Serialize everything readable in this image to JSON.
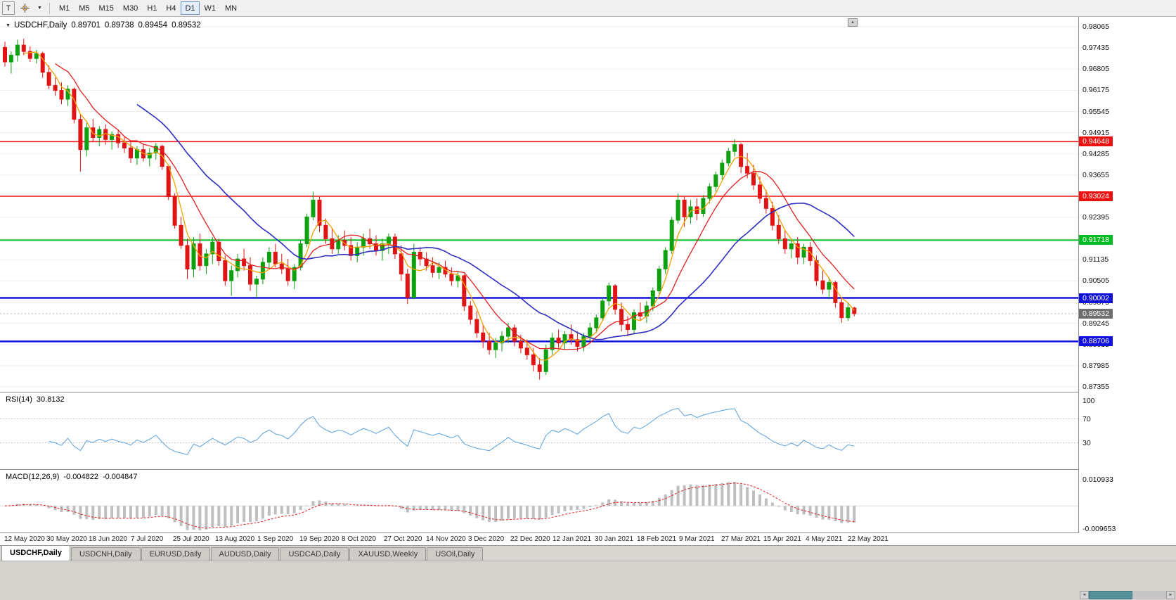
{
  "toolbar": {
    "t_button": "T",
    "timeframes": [
      "M1",
      "M5",
      "M15",
      "M30",
      "H1",
      "H4",
      "D1",
      "W1",
      "MN"
    ],
    "active_timeframe": "D1"
  },
  "icons": {
    "one_click_arrow": "▼",
    "tool_dropdown": "▼",
    "shift_marker": "▲",
    "scroll_left": "◄",
    "scroll_right": "►"
  },
  "chart_header": {
    "symbol": "USDCHF,Daily",
    "open": "0.89701",
    "high": "0.89738",
    "low": "0.89454",
    "close": "0.89532"
  },
  "price_axis": {
    "max": 0.98065,
    "min": 0.87355,
    "labels": [
      "0.98065",
      "0.97435",
      "0.96805",
      "0.96175",
      "0.95545",
      "0.94915",
      "0.94285",
      "0.93655",
      "0.93025",
      "0.92395",
      "0.91765",
      "0.91135",
      "0.90505",
      "0.89875",
      "0.89245",
      "0.88615",
      "0.87985",
      "0.87355"
    ]
  },
  "levels": [
    {
      "value": "0.94648",
      "color": "#ee1111",
      "thickness": 1.5
    },
    {
      "value": "0.93024",
      "color": "#ee1111",
      "thickness": 1.5
    },
    {
      "value": "0.91718",
      "color": "#00bb22",
      "thickness": 2
    },
    {
      "value": "0.90002",
      "color": "#1111dd",
      "thickness": 2.5
    },
    {
      "value": "0.88706",
      "color": "#1111dd",
      "thickness": 2.5
    }
  ],
  "current_price": {
    "value": "0.89532",
    "badge_color": "#6e6e6e"
  },
  "rsi_panel": {
    "label": "RSI(14)",
    "value": "30.8132",
    "axis_labels": [
      "100",
      "70",
      "30"
    ],
    "levels": [
      70,
      30
    ]
  },
  "macd_panel": {
    "label": "MACD(12,26,9)",
    "value_main": "-0.004822",
    "value_signal": "-0.004847",
    "axis_labels": [
      "0.010933",
      "-0.009653"
    ],
    "axis_max": 0.010933,
    "axis_min": -0.009653
  },
  "tabs": [
    {
      "label": "USDCHF,Daily",
      "active": true
    },
    {
      "label": "USDCNH,Daily",
      "active": false
    },
    {
      "label": "EURUSD,Daily",
      "active": false
    },
    {
      "label": "AUDUSD,Daily",
      "active": false
    },
    {
      "label": "USDCAD,Daily",
      "active": false
    },
    {
      "label": "XAUUSD,Weekly",
      "active": false
    },
    {
      "label": "USOil,Daily",
      "active": false
    }
  ],
  "colors": {
    "bull": "#0ea00e",
    "bear": "#e01414",
    "ma_fast": "#f2a000",
    "ma_mid": "#e02020",
    "ma_slow": "#2f2fbf",
    "rsi_line": "#5aa0dc",
    "macd_hist": "#bfbfbf",
    "macd_signal": "#e02020",
    "grid": "#ededed"
  },
  "chart_data": {
    "type": "candlestick",
    "symbol": "USDCHF",
    "timeframe": "Daily",
    "title": "USDCHF,Daily",
    "y_range": [
      0.87355,
      0.98065
    ],
    "last_ohlc": {
      "open": 0.89701,
      "high": 0.89738,
      "low": 0.89454,
      "close": 0.89532
    },
    "horizontal_lines": [
      0.94648,
      0.93024,
      0.91718,
      0.90002,
      0.88706
    ],
    "x_labels": [
      "12 May 2020",
      "30 May 2020",
      "18 Jun 2020",
      "7 Jul 2020",
      "25 Jul 2020",
      "13 Aug 2020",
      "1 Sep 2020",
      "19 Sep 2020",
      "8 Oct 2020",
      "27 Oct 2020",
      "14 Nov 2020",
      "3 Dec 2020",
      "22 Dec 2020",
      "12 Jan 2021",
      "30 Jan 2021",
      "18 Feb 2021",
      "9 Mar 2021",
      "27 Mar 2021",
      "15 Apr 2021",
      "4 May 2021",
      "22 May 2021"
    ],
    "overlays": [
      {
        "name": "ma-fast",
        "color": "#f2a000"
      },
      {
        "name": "ma-mid",
        "color": "#e02020"
      },
      {
        "name": "ma-slow",
        "color": "#2f2fbf"
      }
    ],
    "sub_charts": [
      {
        "type": "line",
        "name": "RSI(14)",
        "last_value": 30.8132,
        "range": [
          0,
          100
        ],
        "levels": [
          70,
          30
        ]
      },
      {
        "type": "histogram",
        "name": "MACD(12,26,9)",
        "last_values": [
          -0.004822,
          -0.004847
        ],
        "range": [
          -0.009653,
          0.010933
        ]
      }
    ],
    "candles": [
      [
        0.9745,
        0.9762,
        0.9688,
        0.9702
      ],
      [
        0.9702,
        0.9733,
        0.9667,
        0.9722
      ],
      [
        0.9722,
        0.9768,
        0.9703,
        0.9752
      ],
      [
        0.9752,
        0.9771,
        0.9722,
        0.9733
      ],
      [
        0.9733,
        0.9748,
        0.9702,
        0.9712
      ],
      [
        0.9712,
        0.9738,
        0.9697,
        0.9727
      ],
      [
        0.9727,
        0.9732,
        0.9655,
        0.9671
      ],
      [
        0.9671,
        0.9692,
        0.9621,
        0.9632
      ],
      [
        0.9632,
        0.9656,
        0.9601,
        0.9617
      ],
      [
        0.9617,
        0.9641,
        0.9576,
        0.9591
      ],
      [
        0.9591,
        0.9632,
        0.9571,
        0.9621
      ],
      [
        0.9621,
        0.9626,
        0.9519,
        0.9531
      ],
      [
        0.9531,
        0.9547,
        0.9376,
        0.9441
      ],
      [
        0.9441,
        0.9521,
        0.9421,
        0.9506
      ],
      [
        0.9506,
        0.9532,
        0.9466,
        0.9477
      ],
      [
        0.9477,
        0.9511,
        0.9451,
        0.9501
      ],
      [
        0.9501,
        0.9516,
        0.9456,
        0.9471
      ],
      [
        0.9471,
        0.9496,
        0.9441,
        0.9486
      ],
      [
        0.9486,
        0.9501,
        0.9446,
        0.9461
      ],
      [
        0.9461,
        0.9481,
        0.9431,
        0.9446
      ],
      [
        0.9446,
        0.9466,
        0.9401,
        0.9416
      ],
      [
        0.9416,
        0.9451,
        0.9396,
        0.9441
      ],
      [
        0.9441,
        0.9456,
        0.9406,
        0.9416
      ],
      [
        0.9416,
        0.9446,
        0.9391,
        0.9431
      ],
      [
        0.9431,
        0.9461,
        0.9411,
        0.9451
      ],
      [
        0.9451,
        0.9456,
        0.9381,
        0.9391
      ],
      [
        0.9391,
        0.9396,
        0.9291,
        0.9301
      ],
      [
        0.9301,
        0.9311,
        0.9206,
        0.9216
      ],
      [
        0.9216,
        0.9241,
        0.9146,
        0.9156
      ],
      [
        0.9156,
        0.9176,
        0.9056,
        0.9086
      ],
      [
        0.9086,
        0.9181,
        0.9061,
        0.9161
      ],
      [
        0.9161,
        0.9191,
        0.9081,
        0.9096
      ],
      [
        0.9096,
        0.9146,
        0.9071,
        0.9131
      ],
      [
        0.9131,
        0.9181,
        0.9101,
        0.9166
      ],
      [
        0.9166,
        0.9176,
        0.9096,
        0.9111
      ],
      [
        0.9111,
        0.9126,
        0.9036,
        0.9051
      ],
      [
        0.9051,
        0.9096,
        0.9006,
        0.9081
      ],
      [
        0.9081,
        0.9131,
        0.9061,
        0.9116
      ],
      [
        0.9116,
        0.9146,
        0.9081,
        0.9096
      ],
      [
        0.9096,
        0.9121,
        0.9021,
        0.9041
      ],
      [
        0.9041,
        0.9066,
        0.8998,
        0.9056
      ],
      [
        0.9056,
        0.9121,
        0.9041,
        0.9106
      ],
      [
        0.9106,
        0.9151,
        0.9086,
        0.9136
      ],
      [
        0.9136,
        0.9161,
        0.9091,
        0.9101
      ],
      [
        0.9101,
        0.9131,
        0.9071,
        0.9086
      ],
      [
        0.9086,
        0.9116,
        0.9036,
        0.9051
      ],
      [
        0.9051,
        0.9101,
        0.9026,
        0.9091
      ],
      [
        0.9091,
        0.9171,
        0.9081,
        0.9161
      ],
      [
        0.9161,
        0.9251,
        0.9151,
        0.9241
      ],
      [
        0.9241,
        0.9316,
        0.9231,
        0.9291
      ],
      [
        0.9291,
        0.9301,
        0.9196,
        0.9216
      ],
      [
        0.9216,
        0.9236,
        0.9161,
        0.9176
      ],
      [
        0.9176,
        0.9206,
        0.9131,
        0.9146
      ],
      [
        0.9146,
        0.9186,
        0.9131,
        0.9171
      ],
      [
        0.9171,
        0.9201,
        0.9141,
        0.9156
      ],
      [
        0.9156,
        0.9181,
        0.9111,
        0.9126
      ],
      [
        0.9126,
        0.9166,
        0.9106,
        0.9151
      ],
      [
        0.9151,
        0.9191,
        0.9126,
        0.9176
      ],
      [
        0.9176,
        0.9206,
        0.9146,
        0.9161
      ],
      [
        0.9161,
        0.9186,
        0.9126,
        0.9141
      ],
      [
        0.9141,
        0.9176,
        0.9111,
        0.9161
      ],
      [
        0.9161,
        0.9192,
        0.9131,
        0.9181
      ],
      [
        0.9181,
        0.9191,
        0.9116,
        0.9131
      ],
      [
        0.9131,
        0.9156,
        0.9051,
        0.9071
      ],
      [
        0.9071,
        0.9086,
        0.8982,
        0.9001
      ],
      [
        0.9001,
        0.9161,
        0.8996,
        0.9136
      ],
      [
        0.9136,
        0.9151,
        0.9096,
        0.9116
      ],
      [
        0.9116,
        0.9136,
        0.9081,
        0.9096
      ],
      [
        0.9096,
        0.9121,
        0.9061,
        0.9076
      ],
      [
        0.9076,
        0.9106,
        0.9056,
        0.9091
      ],
      [
        0.9091,
        0.9111,
        0.9061,
        0.9071
      ],
      [
        0.9071,
        0.9091,
        0.9036,
        0.9051
      ],
      [
        0.9051,
        0.9081,
        0.9031,
        0.9066
      ],
      [
        0.9066,
        0.9071,
        0.8961,
        0.8976
      ],
      [
        0.8976,
        0.8991,
        0.8921,
        0.8936
      ],
      [
        0.8936,
        0.8961,
        0.8881,
        0.8896
      ],
      [
        0.8896,
        0.8921,
        0.8851,
        0.8871
      ],
      [
        0.8871,
        0.8896,
        0.8831,
        0.8846
      ],
      [
        0.8846,
        0.8881,
        0.8821,
        0.8866
      ],
      [
        0.8866,
        0.8901,
        0.8841,
        0.8886
      ],
      [
        0.8886,
        0.8926,
        0.8866,
        0.8911
      ],
      [
        0.8911,
        0.8921,
        0.8856,
        0.8871
      ],
      [
        0.8871,
        0.8891,
        0.8836,
        0.8851
      ],
      [
        0.8851,
        0.8876,
        0.8816,
        0.8831
      ],
      [
        0.8831,
        0.8851,
        0.8781,
        0.8801
      ],
      [
        0.8801,
        0.8821,
        0.8757,
        0.8781
      ],
      [
        0.8781,
        0.8861,
        0.8771,
        0.8846
      ],
      [
        0.8846,
        0.8896,
        0.8831,
        0.8881
      ],
      [
        0.8881,
        0.8906,
        0.8851,
        0.8866
      ],
      [
        0.8866,
        0.8901,
        0.8846,
        0.8891
      ],
      [
        0.8891,
        0.8921,
        0.8861,
        0.8876
      ],
      [
        0.8876,
        0.8901,
        0.8841,
        0.8856
      ],
      [
        0.8856,
        0.8896,
        0.8841,
        0.8886
      ],
      [
        0.8886,
        0.8926,
        0.8871,
        0.8911
      ],
      [
        0.8911,
        0.8951,
        0.8896,
        0.8941
      ],
      [
        0.8941,
        0.9001,
        0.8931,
        0.8991
      ],
      [
        0.8991,
        0.9046,
        0.8976,
        0.9036
      ],
      [
        0.9036,
        0.9041,
        0.8951,
        0.8966
      ],
      [
        0.8966,
        0.8986,
        0.8901,
        0.8921
      ],
      [
        0.8921,
        0.8946,
        0.8886,
        0.8906
      ],
      [
        0.8906,
        0.8966,
        0.8891,
        0.8956
      ],
      [
        0.8956,
        0.8986,
        0.8931,
        0.8946
      ],
      [
        0.8946,
        0.8991,
        0.8926,
        0.8976
      ],
      [
        0.8976,
        0.9031,
        0.8961,
        0.9021
      ],
      [
        0.9021,
        0.9096,
        0.9011,
        0.9086
      ],
      [
        0.9086,
        0.9151,
        0.9071,
        0.9141
      ],
      [
        0.9141,
        0.9241,
        0.9131,
        0.9231
      ],
      [
        0.9231,
        0.9311,
        0.9221,
        0.9291
      ],
      [
        0.9291,
        0.9301,
        0.9211,
        0.9241
      ],
      [
        0.9241,
        0.9291,
        0.9221,
        0.9271
      ],
      [
        0.9271,
        0.9296,
        0.9231,
        0.9251
      ],
      [
        0.9251,
        0.9306,
        0.9241,
        0.9296
      ],
      [
        0.9296,
        0.9341,
        0.9281,
        0.9331
      ],
      [
        0.9331,
        0.9376,
        0.9316,
        0.9366
      ],
      [
        0.9366,
        0.9411,
        0.9351,
        0.9401
      ],
      [
        0.9401,
        0.9446,
        0.9391,
        0.9436
      ],
      [
        0.9436,
        0.9472,
        0.9421,
        0.9456
      ],
      [
        0.9456,
        0.9461,
        0.9371,
        0.9391
      ],
      [
        0.9391,
        0.9431,
        0.9356,
        0.9371
      ],
      [
        0.9371,
        0.9396,
        0.9321,
        0.9336
      ],
      [
        0.9336,
        0.9361,
        0.9281,
        0.9296
      ],
      [
        0.9296,
        0.9321,
        0.9251,
        0.9266
      ],
      [
        0.9266,
        0.9286,
        0.9201,
        0.9216
      ],
      [
        0.9216,
        0.9246,
        0.9161,
        0.9176
      ],
      [
        0.9176,
        0.9201,
        0.9131,
        0.9146
      ],
      [
        0.9146,
        0.9176,
        0.9118,
        0.9161
      ],
      [
        0.9161,
        0.9181,
        0.9101,
        0.9121
      ],
      [
        0.9121,
        0.9161,
        0.9101,
        0.9151
      ],
      [
        0.9151,
        0.9166,
        0.9096,
        0.9111
      ],
      [
        0.9111,
        0.9126,
        0.9036,
        0.9051
      ],
      [
        0.9051,
        0.9081,
        0.9011,
        0.9026
      ],
      [
        0.9026,
        0.9061,
        0.8996,
        0.9046
      ],
      [
        0.9046,
        0.9051,
        0.8971,
        0.8986
      ],
      [
        0.8986,
        0.9001,
        0.8926,
        0.8941
      ],
      [
        0.8941,
        0.8986,
        0.8931,
        0.8971
      ],
      [
        0.89701,
        0.89738,
        0.89454,
        0.89532
      ]
    ]
  }
}
